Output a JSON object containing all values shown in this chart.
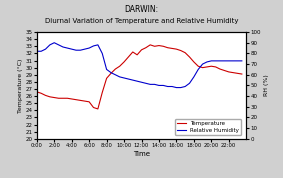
{
  "title_line1": "DARWIN:",
  "title_line2": "Diurnal Variation of Temperature and Relative Humidity",
  "xlabel": "Time",
  "ylabel_left": "Temperature (°C)",
  "ylabel_right": "RH (%)",
  "background_color": "#d0d0d0",
  "plot_bg_color": "#ffffff",
  "temp_color": "#cc0000",
  "rh_color": "#0000cc",
  "ylim_temp": [
    20,
    35
  ],
  "ylim_rh": [
    0,
    100
  ],
  "yticks_temp": [
    20,
    21,
    22,
    23,
    24,
    25,
    26,
    27,
    28,
    29,
    30,
    31,
    32,
    33,
    34,
    35
  ],
  "yticks_rh": [
    0,
    10,
    20,
    30,
    40,
    50,
    60,
    70,
    80,
    90,
    100
  ],
  "time_labels": [
    "0:00",
    "2:00",
    "4:00",
    "6:00",
    "8:00",
    "10:00",
    "12:00",
    "14:00",
    "16:00",
    "18:00",
    "20:00",
    "22:00"
  ],
  "time_hours": [
    0,
    2,
    4,
    6,
    8,
    10,
    12,
    14,
    16,
    18,
    20,
    22
  ],
  "temp_data": [
    [
      0.0,
      26.6
    ],
    [
      0.5,
      26.4
    ],
    [
      1.0,
      26.1
    ],
    [
      1.5,
      25.9
    ],
    [
      2.0,
      25.8
    ],
    [
      2.5,
      25.7
    ],
    [
      3.0,
      25.7
    ],
    [
      3.5,
      25.7
    ],
    [
      4.0,
      25.6
    ],
    [
      4.5,
      25.5
    ],
    [
      5.0,
      25.4
    ],
    [
      5.5,
      25.3
    ],
    [
      6.0,
      25.2
    ],
    [
      6.5,
      24.4
    ],
    [
      7.0,
      24.2
    ],
    [
      7.5,
      26.5
    ],
    [
      8.0,
      28.5
    ],
    [
      8.5,
      29.2
    ],
    [
      9.0,
      29.8
    ],
    [
      9.5,
      30.2
    ],
    [
      10.0,
      30.8
    ],
    [
      10.5,
      31.5
    ],
    [
      11.0,
      32.2
    ],
    [
      11.5,
      31.8
    ],
    [
      12.0,
      32.5
    ],
    [
      12.5,
      32.8
    ],
    [
      13.0,
      33.2
    ],
    [
      13.5,
      33.0
    ],
    [
      14.0,
      33.1
    ],
    [
      14.5,
      33.0
    ],
    [
      15.0,
      32.8
    ],
    [
      15.5,
      32.7
    ],
    [
      16.0,
      32.6
    ],
    [
      16.5,
      32.4
    ],
    [
      17.0,
      32.1
    ],
    [
      17.5,
      31.5
    ],
    [
      18.0,
      30.8
    ],
    [
      18.5,
      30.2
    ],
    [
      19.0,
      30.0
    ],
    [
      19.5,
      30.1
    ],
    [
      20.0,
      30.2
    ],
    [
      20.5,
      30.1
    ],
    [
      21.0,
      29.8
    ],
    [
      21.5,
      29.6
    ],
    [
      22.0,
      29.4
    ],
    [
      22.5,
      29.3
    ],
    [
      23.0,
      29.2
    ],
    [
      23.5,
      29.1
    ]
  ],
  "rh_data": [
    [
      0.0,
      82
    ],
    [
      0.5,
      82
    ],
    [
      1.0,
      84
    ],
    [
      1.5,
      88
    ],
    [
      2.0,
      90
    ],
    [
      2.5,
      88
    ],
    [
      3.0,
      86
    ],
    [
      3.5,
      85
    ],
    [
      4.0,
      84
    ],
    [
      4.5,
      83
    ],
    [
      5.0,
      83
    ],
    [
      5.5,
      84
    ],
    [
      6.0,
      85
    ],
    [
      6.5,
      87
    ],
    [
      7.0,
      88
    ],
    [
      7.5,
      80
    ],
    [
      8.0,
      65
    ],
    [
      8.5,
      62
    ],
    [
      9.0,
      60
    ],
    [
      9.5,
      58
    ],
    [
      10.0,
      57
    ],
    [
      10.5,
      56
    ],
    [
      11.0,
      55
    ],
    [
      11.5,
      54
    ],
    [
      12.0,
      53
    ],
    [
      12.5,
      52
    ],
    [
      13.0,
      51
    ],
    [
      13.5,
      51
    ],
    [
      14.0,
      50
    ],
    [
      14.5,
      50
    ],
    [
      15.0,
      49
    ],
    [
      15.5,
      49
    ],
    [
      16.0,
      48
    ],
    [
      16.5,
      48
    ],
    [
      17.0,
      49
    ],
    [
      17.5,
      52
    ],
    [
      18.0,
      58
    ],
    [
      18.5,
      65
    ],
    [
      19.0,
      70
    ],
    [
      19.5,
      72
    ],
    [
      20.0,
      73
    ],
    [
      20.5,
      73
    ],
    [
      21.0,
      73
    ],
    [
      21.5,
      73
    ],
    [
      22.0,
      73
    ],
    [
      22.5,
      73
    ],
    [
      23.0,
      73
    ],
    [
      23.5,
      73
    ]
  ]
}
